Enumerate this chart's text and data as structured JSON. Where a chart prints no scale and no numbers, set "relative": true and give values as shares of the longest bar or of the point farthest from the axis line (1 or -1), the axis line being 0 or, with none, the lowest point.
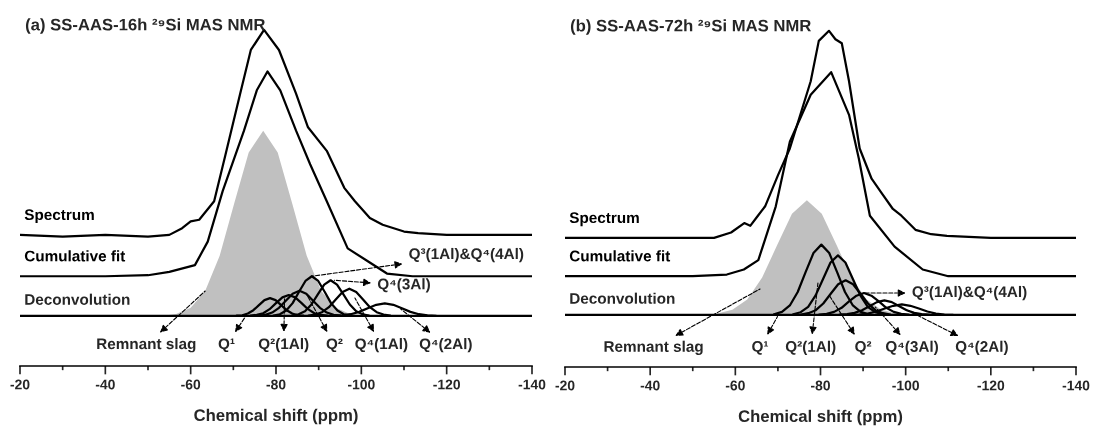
{
  "chart_data": [
    {
      "type": "line",
      "title": "(a) SS-AAS-16h ²⁹Si MAS NMR",
      "xlabel": "Chemical shift (ppm)",
      "relative": true,
      "legend": false,
      "xlim": [
        -20,
        -140
      ],
      "xticks": [
        -20,
        {
          "value": -30,
          "label": null
        },
        -40,
        {
          "value": -50,
          "label": null
        },
        -60,
        {
          "value": -70,
          "label": null
        },
        -80,
        {
          "value": -90,
          "label": null
        },
        -100,
        {
          "value": -110,
          "label": null
        },
        -120,
        {
          "value": -130,
          "label": null
        },
        -140
      ],
      "series": [
        {
          "name": "Spectrum",
          "color": "#000000",
          "x": [
            -20,
            -30,
            -40,
            -50,
            -55,
            -58,
            -60,
            -62,
            -65.5,
            -68,
            -71.6,
            -74.1,
            -77.2,
            -80.7,
            -84.7,
            -87.5,
            -91.9,
            -96,
            -98.5,
            -102,
            -105,
            -110,
            -113.3,
            -120,
            -130,
            -140
          ],
          "values": [
            0.39,
            0.385,
            0.39,
            0.385,
            0.39,
            0.41,
            0.43,
            0.435,
            0.49,
            0.62,
            0.81,
            0.94,
            1,
            0.94,
            0.81,
            0.71,
            0.64,
            0.53,
            0.49,
            0.44,
            0.42,
            0.4,
            0.395,
            0.39,
            0.39,
            0.39
          ]
        },
        {
          "name": "Cumulative fit",
          "color": "#000000",
          "x": [
            -20,
            -40,
            -50,
            -55,
            -61,
            -64,
            -67.5,
            -72.5,
            -75.5,
            -78,
            -81,
            -84.7,
            -88,
            -91.9,
            -96.8,
            -101.7,
            -106,
            -112,
            -140
          ],
          "values": [
            0.267,
            0.267,
            0.27,
            0.28,
            0.3,
            0.37,
            0.52,
            0.7,
            0.82,
            0.876,
            0.82,
            0.7,
            0.6,
            0.49,
            0.35,
            0.31,
            0.275,
            0.267,
            0.267
          ]
        },
        {
          "type": "area",
          "color": "#c0c0c0",
          "x": [
            -53.2,
            -56.6,
            -60,
            -63.4,
            -66.8,
            -70.2,
            -73.6,
            -77,
            -80.4,
            -83.8,
            -87.2,
            -90.6,
            -94,
            -97.4,
            -100.8
          ],
          "values": [
            0.149,
            0.155,
            0.173,
            0.223,
            0.328,
            0.483,
            0.635,
            0.7,
            0.635,
            0.483,
            0.328,
            0.223,
            0.173,
            0.155,
            0.149
          ]
        },
        {
          "color": "#000000",
          "x": [
            -70.8,
            -72.1,
            -73.4,
            -74.7,
            -76.0,
            -77.3,
            -78.6,
            -79.9,
            -81.2,
            -82.5,
            -83.8,
            -85.1,
            -86.4
          ],
          "values": [
            0.15,
            0.151,
            0.156,
            0.166,
            0.181,
            0.196,
            0.202,
            0.196,
            0.181,
            0.166,
            0.156,
            0.151,
            0.15
          ]
        },
        {
          "color": "#000000",
          "x": [
            -74,
            -75.5,
            -77,
            -78.5,
            -80,
            -81.5,
            -83,
            -84.5,
            -86,
            -87.5,
            -89,
            -90.5,
            -92
          ],
          "values": [
            0.15,
            0.152,
            0.157,
            0.169,
            0.187,
            0.204,
            0.211,
            0.204,
            0.187,
            0.169,
            0.157,
            0.152,
            0.15
          ]
        },
        {
          "color": "#000000",
          "x": [
            -75.9,
            -77.5,
            -79.1,
            -80.7,
            -82.3,
            -83.9,
            -85.5,
            -87.1,
            -88.7,
            -90.3,
            -91.9,
            -93.5,
            -95.1
          ],
          "values": [
            0.15,
            0.152,
            0.159,
            0.173,
            0.194,
            0.215,
            0.224,
            0.215,
            0.194,
            0.173,
            0.159,
            0.152,
            0.15
          ]
        },
        {
          "color": "#000000",
          "x": [
            -79.4,
            -80.9,
            -82.4,
            -83.9,
            -85.4,
            -86.9,
            -88.4,
            -89.9,
            -91.4,
            -92.9,
            -94.4,
            -95.9,
            -97.4
          ],
          "values": [
            0.15,
            0.154,
            0.165,
            0.187,
            0.221,
            0.253,
            0.267,
            0.253,
            0.221,
            0.187,
            0.165,
            0.154,
            0.15
          ]
        },
        {
          "color": "#000000",
          "x": [
            -83.8,
            -85.3,
            -86.8,
            -88.3,
            -89.8,
            -91.3,
            -92.8,
            -94.3,
            -95.8,
            -97.3,
            -98.8,
            -100.3,
            -101.8
          ],
          "values": [
            0.15,
            0.154,
            0.163,
            0.183,
            0.213,
            0.242,
            0.255,
            0.242,
            0.213,
            0.183,
            0.163,
            0.154,
            0.15
          ]
        },
        {
          "color": "#000000",
          "x": [
            -87.6,
            -89.2,
            -90.8,
            -92.4,
            -94,
            -95.6,
            -97.2,
            -98.8,
            -100.4,
            -102,
            -103.6,
            -105.2,
            -106.8
          ],
          "values": [
            0.15,
            0.153,
            0.16,
            0.175,
            0.198,
            0.22,
            0.23,
            0.22,
            0.198,
            0.175,
            0.16,
            0.153,
            0.15
          ]
        },
        {
          "color": "#000000",
          "x": [
            -93.5,
            -95.5,
            -97.5,
            -99.5,
            -101.5,
            -103.5,
            -105.5,
            -107.5,
            -109.5,
            -111.5,
            -113.5,
            -115.5,
            -117.5
          ],
          "values": [
            0.149,
            0.151,
            0.154,
            0.161,
            0.172,
            0.182,
            0.186,
            0.182,
            0.172,
            0.161,
            0.154,
            0.151,
            0.149
          ]
        }
      ],
      "ref_lines": [
        {
          "axis": "y",
          "value": 0.149,
          "label": "Deconvolution",
          "color": "#000000"
        }
      ],
      "annotations": [
        {
          "text": "Remnant slag",
          "x": -63.4,
          "y": 0.223
        },
        {
          "text": "Q¹",
          "x": -73,
          "y": 0.15
        },
        {
          "text": "Q²(1Al)",
          "x": -82,
          "y": 0.2
        },
        {
          "text": "Q²",
          "x": -87.1,
          "y": 0.215
        },
        {
          "text": "Q⁴(1Al)",
          "x": -98.5,
          "y": 0.202
        },
        {
          "text": "Q⁴(2Al)",
          "x": -109.2,
          "y": 0.17
        },
        {
          "text": "Q³(1Al)&Q⁴(4Al)",
          "x": -88.4,
          "y": 0.267
        },
        {
          "text": "Q⁴(3Al)",
          "x": -93.7,
          "y": 0.255
        }
      ]
    },
    {
      "type": "line",
      "title": "(b) SS-AAS-72h ²⁹Si MAS NMR",
      "xlabel": "Chemical shift (ppm)",
      "relative": true,
      "legend": false,
      "xlim": [
        -20,
        -140
      ],
      "xticks": [
        -20,
        {
          "value": -30,
          "label": null
        },
        -40,
        {
          "value": -50,
          "label": null
        },
        -60,
        {
          "value": -70,
          "label": null
        },
        -80,
        {
          "value": -90,
          "label": null
        },
        -100,
        {
          "value": -110,
          "label": null
        },
        -120,
        {
          "value": -130,
          "label": null
        },
        -140
      ],
      "series": [
        {
          "name": "Spectrum",
          "color": "#000000",
          "x": [
            -20,
            -40,
            -55,
            -59,
            -62.1,
            -63.5,
            -65.3,
            -67,
            -70,
            -72.8,
            -77.7,
            -79.6,
            -82,
            -83.5,
            -85,
            -86.7,
            -89.2,
            -92,
            -94.2,
            -97,
            -99,
            -102.3,
            -106,
            -109.7,
            -120,
            -140
          ],
          "values": [
            0.384,
            0.384,
            0.384,
            0.4,
            0.428,
            0.42,
            0.45,
            0.478,
            0.57,
            0.65,
            0.85,
            0.97,
            1,
            0.975,
            0.963,
            0.85,
            0.65,
            0.56,
            0.52,
            0.47,
            0.45,
            0.408,
            0.395,
            0.39,
            0.384,
            0.384
          ]
        },
        {
          "name": "Cumulative fit",
          "color": "#000000",
          "x": [
            -20,
            -50,
            -58,
            -62,
            -65.4,
            -69.5,
            -72.8,
            -77.7,
            -82.5,
            -86.7,
            -89,
            -91.6,
            -97.4,
            -104,
            -110,
            -140
          ],
          "values": [
            0.27,
            0.27,
            0.275,
            0.29,
            0.318,
            0.478,
            0.67,
            0.81,
            0.877,
            0.75,
            0.62,
            0.45,
            0.358,
            0.29,
            0.27,
            0.27
          ]
        },
        {
          "type": "area",
          "color": "#c0c0c0",
          "x": [
            -52.3,
            -55.8,
            -59.3,
            -62.8,
            -66.3,
            -69.8,
            -73.3,
            -76.8,
            -80.3,
            -83.8,
            -87.3,
            -90.8,
            -94.3,
            -97.8,
            -101.3
          ],
          "values": [
            0.155,
            0.159,
            0.17,
            0.201,
            0.266,
            0.362,
            0.456,
            0.496,
            0.456,
            0.362,
            0.266,
            0.201,
            0.17,
            0.159,
            0.155
          ]
        },
        {
          "color": "#000000",
          "x": [
            -69.1,
            -70.95,
            -72.8,
            -74.65,
            -76.5,
            -78.35,
            -80.2,
            -82.05,
            -83.9,
            -85.75,
            -87.6,
            -89.45,
            -91.3
          ],
          "values": [
            0.157,
            0.164,
            0.183,
            0.223,
            0.282,
            0.339,
            0.364,
            0.339,
            0.282,
            0.223,
            0.183,
            0.164,
            0.157
          ]
        },
        {
          "color": "#000000",
          "x": [
            -73.6,
            -75.35,
            -77.1,
            -78.85,
            -80.6,
            -82.35,
            -84.1,
            -85.85,
            -87.6,
            -89.35,
            -91.1,
            -92.85,
            -94.6
          ],
          "values": [
            0.157,
            0.163,
            0.179,
            0.213,
            0.262,
            0.311,
            0.332,
            0.311,
            0.262,
            0.213,
            0.179,
            0.163,
            0.157
          ]
        },
        {
          "color": "#000000",
          "x": [
            -75.4,
            -77.15,
            -78.9,
            -80.65,
            -82.4,
            -84.15,
            -85.9,
            -87.65,
            -89.4,
            -91.15,
            -92.9,
            -94.65,
            -96.4
          ],
          "values": [
            0.156,
            0.16,
            0.169,
            0.189,
            0.218,
            0.246,
            0.258,
            0.246,
            0.218,
            0.189,
            0.169,
            0.16,
            0.156
          ]
        },
        {
          "color": "#000000",
          "x": [
            -79.7,
            -81.45,
            -83.2,
            -84.95,
            -86.7,
            -88.45,
            -90.2,
            -91.95,
            -93.7,
            -95.45,
            -97.2,
            -98.95,
            -100.7
          ],
          "values": [
            0.156,
            0.158,
            0.164,
            0.176,
            0.195,
            0.212,
            0.22,
            0.212,
            0.195,
            0.176,
            0.164,
            0.158,
            0.156
          ]
        },
        {
          "color": "#000000",
          "x": [
            -84.5,
            -86.25,
            -88,
            -89.75,
            -91.5,
            -93.25,
            -95,
            -96.75,
            -98.5,
            -100.25,
            -102,
            -103.75,
            -105.5
          ],
          "values": [
            0.156,
            0.157,
            0.161,
            0.169,
            0.181,
            0.193,
            0.198,
            0.193,
            0.181,
            0.169,
            0.161,
            0.157,
            0.156
          ]
        },
        {
          "color": "#000000",
          "x": [
            -87.1,
            -89.1,
            -91.1,
            -93.1,
            -95.1,
            -97.1,
            -99.1,
            -101.1,
            -103.1,
            -105.1,
            -107.1,
            -109.1,
            -111.1
          ],
          "values": [
            0.155,
            0.156,
            0.159,
            0.165,
            0.174,
            0.182,
            0.186,
            0.182,
            0.174,
            0.165,
            0.159,
            0.156,
            0.155
          ]
        }
      ],
      "ref_lines": [
        {
          "axis": "y",
          "value": 0.155,
          "label": "Deconvolution",
          "color": "#000000"
        }
      ],
      "annotations": [
        {
          "text": "Remnant slag",
          "x": -65.8,
          "y": 0.232
        },
        {
          "text": "Q¹",
          "x": -69.9,
          "y": 0.15
        },
        {
          "text": "Q²(1Al)",
          "x": -79.4,
          "y": 0.25
        },
        {
          "text": "Q²",
          "x": -82.2,
          "y": 0.21
        },
        {
          "text": "Q⁴(3Al)",
          "x": -92.9,
          "y": 0.178
        },
        {
          "text": "Q⁴(2Al)",
          "x": -99.9,
          "y": 0.172
        },
        "Q³(1Al)&Q⁴(4Al)"
      ]
    }
  ]
}
